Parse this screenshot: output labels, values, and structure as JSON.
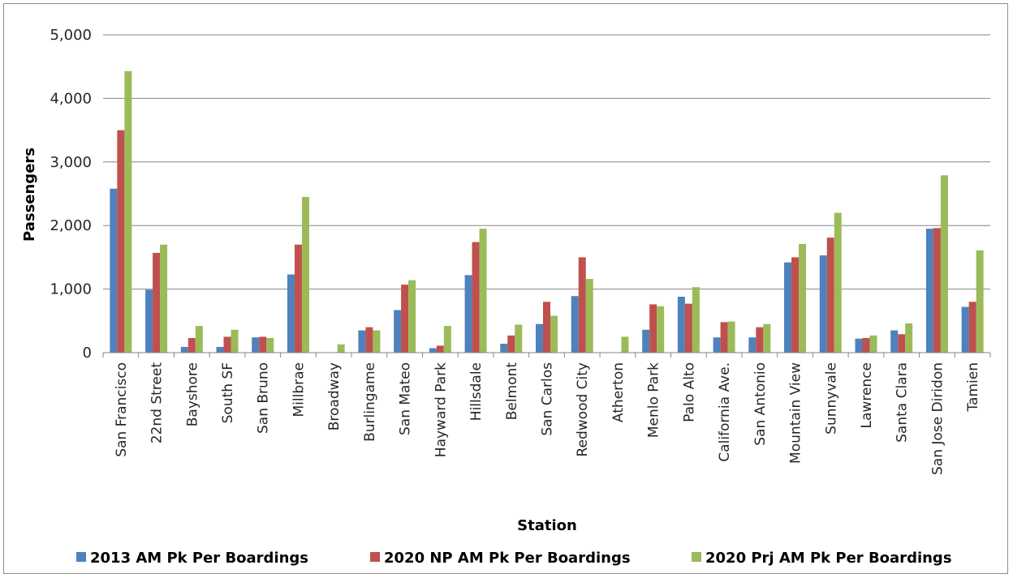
{
  "chart_data": {
    "type": "bar",
    "title": "",
    "xlabel": "Station",
    "ylabel": "Passengers",
    "ylim": [
      0,
      5000
    ],
    "yticks": [
      "0",
      "1,000",
      "2,000",
      "3,000",
      "4,000",
      "5,000"
    ],
    "grid": true,
    "legend_position": "bottom",
    "categories": [
      "San Francisco",
      "22nd Street",
      "Bayshore",
      "South SF",
      "San Bruno",
      "Millbrae",
      "Broadway",
      "Burlingame",
      "San Mateo",
      "Hayward Park",
      "Hillsdale",
      "Belmont",
      "San Carlos",
      "Redwood City",
      "Atherton",
      "Menlo Park",
      "Palo Alto",
      "California Ave.",
      "San Antonio",
      "Mountain View",
      "Sunnyvale",
      "Lawrence",
      "Santa Clara",
      "San Jose Diridon",
      "Tamien"
    ],
    "series": [
      {
        "name": "2013 AM Pk Per Boardings",
        "color": "#4f81bd",
        "values": [
          2580,
          990,
          90,
          90,
          240,
          1230,
          0,
          350,
          670,
          70,
          1220,
          140,
          450,
          890,
          0,
          360,
          880,
          240,
          240,
          1420,
          1530,
          220,
          350,
          1950,
          720
        ]
      },
      {
        "name": "2020 NP AM Pk Per Boardings",
        "color": "#c0504d",
        "values": [
          3500,
          1570,
          230,
          250,
          250,
          1700,
          0,
          400,
          1070,
          110,
          1740,
          270,
          800,
          1500,
          0,
          760,
          770,
          480,
          400,
          1500,
          1810,
          230,
          290,
          1960,
          800
        ]
      },
      {
        "name": "2020 Prj AM Pk Per Boardings",
        "color": "#9bbb59",
        "values": [
          4430,
          1700,
          420,
          360,
          230,
          2450,
          130,
          350,
          1140,
          420,
          1950,
          440,
          580,
          1160,
          250,
          730,
          1030,
          490,
          450,
          1710,
          2200,
          270,
          460,
          2790,
          1610
        ]
      }
    ]
  }
}
